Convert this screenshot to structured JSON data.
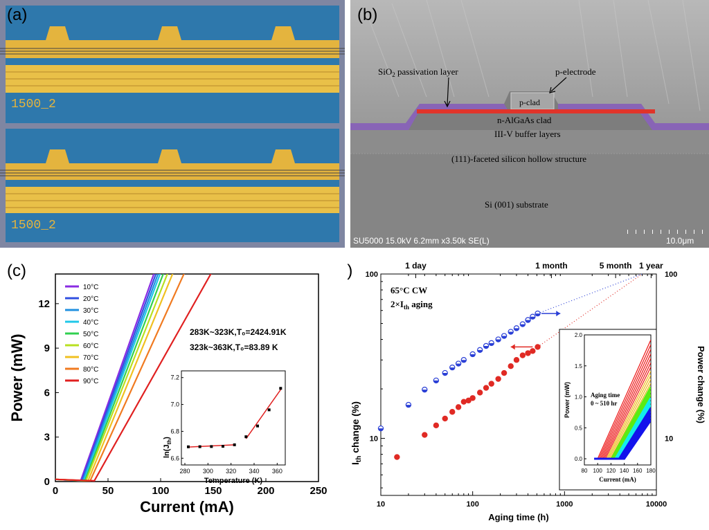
{
  "panels": {
    "a": {
      "label": "(a)",
      "die_marking_top": "1500_2",
      "die_marking_bottom": "1500_2",
      "colors": {
        "substrate": "#2e78ac",
        "metal": "#e4b43e",
        "frame": "#7f86a2"
      }
    },
    "b": {
      "label": "(b)",
      "annotations": {
        "passivation_prefix": "SiO",
        "passivation_sub": "2",
        "passivation_suffix": " passivation layer",
        "p_electrode": "p-electrode",
        "p_clad": "p-clad",
        "n_clad": "n-AlGaAs clad",
        "buffer": "III-V buffer layers",
        "hollow": "(111)-faceted silicon hollow structure",
        "substrate": "Si (001) substrate"
      },
      "sem_info": "SU5000 15.0kV 6.2mm x3.50k SE(L)",
      "scale_bar": "10.0μm",
      "colors": {
        "active": "#e0342a",
        "passivation": "#8a5fbf"
      }
    },
    "c": {
      "label": "(c)",
      "annotation_1": "283K~323K,T₀=2424.91K",
      "annotation_2": "323k~363K,T₀=83.89 K",
      "inset_ylabel": "ln(J",
      "inset_ylabel_sub": "th",
      "inset_ylabel_end": ")"
    },
    "d": {
      "label": "(d)",
      "top_axis_labels": [
        "1 day",
        "1 month",
        "5 month",
        "1 year"
      ],
      "annotation_line1": "65°C CW",
      "annotation_line2": "2×I",
      "annotation_line2_sub": "th",
      "annotation_line2_end": " aging",
      "ylabel_prefix": "I",
      "ylabel_sub": "th",
      "ylabel_suffix": " change (%)",
      "inset_annotation_1": "Aging time",
      "inset_annotation_2": "0 ~ 510 hr"
    }
  },
  "chart_data": [
    {
      "id": "c",
      "type": "line",
      "xlabel": "Current (mA)",
      "ylabel": "Power (mW)",
      "xlim": [
        0,
        250
      ],
      "ylim": [
        0,
        14
      ],
      "xticks": [
        0,
        50,
        100,
        150,
        200,
        250
      ],
      "yticks": [
        0,
        3,
        6,
        9,
        12
      ],
      "legend_position": "top-left",
      "series": [
        {
          "name": "10°C",
          "color": "#8a2be2",
          "threshold": 24,
          "end_current": 95
        },
        {
          "name": "20°C",
          "color": "#3050e0",
          "threshold": 25,
          "end_current": 97
        },
        {
          "name": "30°C",
          "color": "#2090e0",
          "threshold": 26,
          "end_current": 99
        },
        {
          "name": "40°C",
          "color": "#20c8e8",
          "threshold": 27,
          "end_current": 101
        },
        {
          "name": "50°C",
          "color": "#30d050",
          "threshold": 28,
          "end_current": 104
        },
        {
          "name": "60°C",
          "color": "#b8e020",
          "threshold": 29,
          "end_current": 108
        },
        {
          "name": "70°C",
          "color": "#f0c020",
          "threshold": 31,
          "end_current": 113
        },
        {
          "name": "80°C",
          "color": "#f07a20",
          "threshold": 33,
          "end_current": 124
        },
        {
          "name": "90°C",
          "color": "#e02020",
          "threshold": 37,
          "end_current": 150
        }
      ]
    },
    {
      "id": "c-inset",
      "type": "scatter",
      "xlabel": "Temperature (K)",
      "xlim": [
        277,
        367
      ],
      "ylim": [
        6.55,
        7.25
      ],
      "xticks": [
        280,
        300,
        320,
        340,
        360
      ],
      "yticks": [
        6.6,
        6.8,
        7.0,
        7.2
      ],
      "points": [
        [
          283,
          6.685
        ],
        [
          293,
          6.686
        ],
        [
          303,
          6.687
        ],
        [
          313,
          6.689
        ],
        [
          323,
          6.7
        ],
        [
          333,
          6.76
        ],
        [
          343,
          6.84
        ],
        [
          353,
          6.96
        ],
        [
          363,
          7.12
        ]
      ],
      "fit_lines": [
        [
          [
            283,
            6.683
          ],
          [
            323,
            6.7
          ]
        ],
        [
          [
            333,
            6.745
          ],
          [
            363,
            7.11
          ]
        ]
      ]
    },
    {
      "id": "d",
      "type": "scatter",
      "xlabel": "Aging time (h)",
      "ylabel": "Ith change (%)",
      "y2label": "Power change (%)",
      "x_scale": "log",
      "y_scale": "log",
      "xlim": [
        10,
        10000
      ],
      "ylim": [
        4.5,
        100
      ],
      "xticks": [
        10,
        100,
        1000,
        10000
      ],
      "yticks": [
        10,
        100
      ],
      "y2ticks": [
        10,
        100
      ],
      "top_axis_positions": [
        24,
        720,
        3600,
        8760
      ],
      "series": [
        {
          "name": "Ith change",
          "color": "#2a3fd6",
          "points": [
            [
              10,
              11.5
            ],
            [
              20,
              16
            ],
            [
              30,
              19.8
            ],
            [
              40,
              22.5
            ],
            [
              50,
              25
            ],
            [
              60,
              27
            ],
            [
              70,
              28.5
            ],
            [
              80,
              30
            ],
            [
              100,
              32.5
            ],
            [
              120,
              34.5
            ],
            [
              140,
              36.5
            ],
            [
              160,
              38
            ],
            [
              190,
              40
            ],
            [
              220,
              42
            ],
            [
              260,
              44.5
            ],
            [
              300,
              46.8
            ],
            [
              350,
              49.5
            ],
            [
              400,
              52.5
            ],
            [
              450,
              55
            ],
            [
              510,
              57.5
            ]
          ]
        },
        {
          "name": "Power change",
          "color": "#e02a24",
          "points": [
            [
              15,
              7.7
            ],
            [
              30,
              10.5
            ],
            [
              40,
              12
            ],
            [
              50,
              13.2
            ],
            [
              60,
              14.5
            ],
            [
              70,
              15.5
            ],
            [
              80,
              16.7
            ],
            [
              90,
              17
            ],
            [
              100,
              17.6
            ],
            [
              120,
              19
            ],
            [
              140,
              20.3
            ],
            [
              160,
              21.5
            ],
            [
              190,
              23
            ],
            [
              220,
              25
            ],
            [
              260,
              27.5
            ],
            [
              300,
              30
            ],
            [
              350,
              32
            ],
            [
              400,
              33
            ],
            [
              450,
              34
            ],
            [
              510,
              36
            ]
          ]
        }
      ],
      "extrapolation_end": [
        [
          510,
          57.5
        ],
        [
          7000,
          100
        ]
      ],
      "extrapolation_end_power": [
        [
          510,
          36
        ],
        [
          7000,
          100
        ]
      ]
    },
    {
      "id": "d-inset",
      "type": "line",
      "xlabel": "Current (mA)",
      "ylabel": "Power (mW)",
      "xlim": [
        80,
        180
      ],
      "ylim": [
        -0.1,
        2.0
      ],
      "xticks": [
        80,
        100,
        120,
        140,
        160,
        180
      ],
      "yticks": [
        0.0,
        0.5,
        1.0,
        1.5,
        2.0
      ],
      "curves": 22,
      "threshold_range": [
        100,
        140
      ],
      "slope": 0.024
    }
  ]
}
